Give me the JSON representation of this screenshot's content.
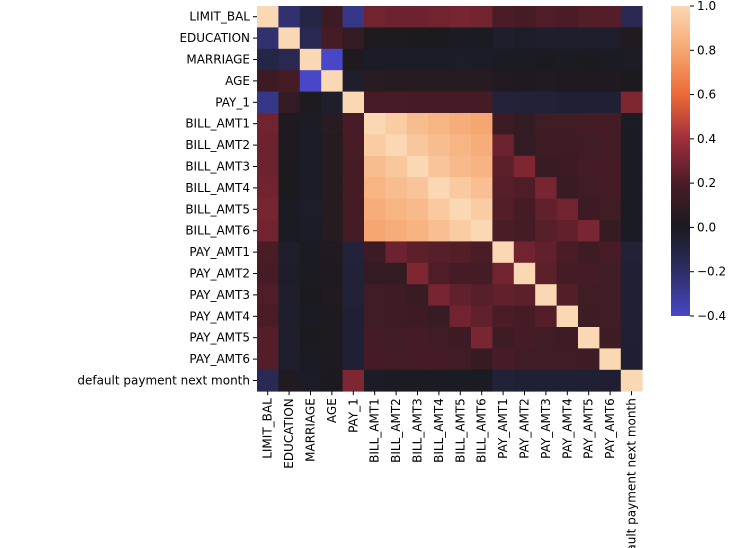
{
  "chart_data": {
    "type": "heatmap",
    "title": "",
    "xlabel": "",
    "ylabel": "",
    "labels": [
      "LIMIT_BAL",
      "EDUCATION",
      "MARRIAGE",
      "AGE",
      "PAY_1",
      "BILL_AMT1",
      "BILL_AMT2",
      "BILL_AMT3",
      "BILL_AMT4",
      "BILL_AMT5",
      "BILL_AMT6",
      "PAY_AMT1",
      "PAY_AMT2",
      "PAY_AMT3",
      "PAY_AMT4",
      "PAY_AMT5",
      "PAY_AMT6",
      "default payment next month"
    ],
    "values": [
      [
        1.0,
        -0.22,
        -0.11,
        0.14,
        -0.27,
        0.29,
        0.28,
        0.28,
        0.29,
        0.3,
        0.29,
        0.2,
        0.18,
        0.21,
        0.2,
        0.22,
        0.22,
        -0.15
      ],
      [
        -0.22,
        1.0,
        -0.14,
        0.18,
        0.11,
        0.02,
        0.02,
        0.01,
        0.0,
        -0.01,
        -0.01,
        -0.04,
        -0.03,
        -0.04,
        -0.04,
        -0.04,
        -0.04,
        0.03
      ],
      [
        -0.11,
        -0.14,
        1.0,
        -0.41,
        0.02,
        -0.02,
        -0.02,
        -0.02,
        -0.02,
        -0.03,
        -0.02,
        -0.01,
        -0.01,
        0.0,
        -0.01,
        -0.0,
        -0.01,
        -0.02
      ],
      [
        0.14,
        0.18,
        -0.41,
        1.0,
        -0.04,
        0.06,
        0.05,
        0.05,
        0.05,
        0.05,
        0.05,
        0.03,
        0.02,
        0.03,
        0.02,
        0.02,
        0.02,
        0.01
      ],
      [
        -0.27,
        0.11,
        0.02,
        -0.04,
        1.0,
        0.19,
        0.19,
        0.18,
        0.18,
        0.18,
        0.18,
        -0.08,
        -0.07,
        -0.07,
        -0.06,
        -0.06,
        -0.06,
        0.32
      ],
      [
        0.29,
        0.02,
        -0.02,
        0.06,
        0.19,
        1.0,
        0.95,
        0.89,
        0.86,
        0.83,
        0.8,
        0.14,
        0.1,
        0.16,
        0.16,
        0.17,
        0.18,
        -0.02
      ],
      [
        0.28,
        0.02,
        -0.02,
        0.05,
        0.19,
        0.95,
        1.0,
        0.93,
        0.89,
        0.86,
        0.83,
        0.28,
        0.1,
        0.15,
        0.15,
        0.16,
        0.17,
        -0.01
      ],
      [
        0.28,
        0.01,
        -0.02,
        0.05,
        0.18,
        0.89,
        0.93,
        1.0,
        0.92,
        0.88,
        0.85,
        0.24,
        0.32,
        0.13,
        0.14,
        0.18,
        0.18,
        -0.01
      ],
      [
        0.29,
        0.0,
        -0.02,
        0.05,
        0.18,
        0.86,
        0.89,
        0.92,
        1.0,
        0.94,
        0.9,
        0.23,
        0.21,
        0.3,
        0.13,
        0.16,
        0.18,
        -0.01
      ],
      [
        0.3,
        -0.01,
        -0.03,
        0.05,
        0.18,
        0.83,
        0.86,
        0.88,
        0.94,
        1.0,
        0.95,
        0.22,
        0.18,
        0.25,
        0.29,
        0.14,
        0.16,
        -0.01
      ],
      [
        0.29,
        -0.01,
        -0.02,
        0.05,
        0.18,
        0.8,
        0.83,
        0.85,
        0.9,
        0.95,
        1.0,
        0.2,
        0.17,
        0.23,
        0.25,
        0.31,
        0.12,
        -0.01
      ],
      [
        0.2,
        -0.04,
        -0.01,
        0.03,
        -0.08,
        0.14,
        0.28,
        0.24,
        0.23,
        0.22,
        0.2,
        1.0,
        0.29,
        0.25,
        0.2,
        0.15,
        0.19,
        -0.07
      ],
      [
        0.18,
        -0.03,
        -0.01,
        0.02,
        -0.07,
        0.1,
        0.1,
        0.32,
        0.21,
        0.18,
        0.17,
        0.29,
        1.0,
        0.24,
        0.18,
        0.18,
        0.16,
        -0.06
      ],
      [
        0.21,
        -0.04,
        0.0,
        0.03,
        -0.07,
        0.16,
        0.15,
        0.13,
        0.3,
        0.25,
        0.23,
        0.25,
        0.24,
        1.0,
        0.22,
        0.16,
        0.16,
        -0.06
      ],
      [
        0.2,
        -0.04,
        -0.01,
        0.02,
        -0.06,
        0.16,
        0.15,
        0.14,
        0.13,
        0.29,
        0.25,
        0.2,
        0.18,
        0.22,
        1.0,
        0.15,
        0.16,
        -0.06
      ],
      [
        0.22,
        -0.04,
        -0.0,
        0.02,
        -0.06,
        0.17,
        0.16,
        0.18,
        0.16,
        0.14,
        0.31,
        0.15,
        0.18,
        0.16,
        0.15,
        1.0,
        0.15,
        -0.06
      ],
      [
        0.22,
        -0.04,
        -0.01,
        0.02,
        -0.06,
        0.18,
        0.17,
        0.18,
        0.18,
        0.16,
        0.12,
        0.19,
        0.16,
        0.16,
        0.16,
        0.15,
        1.0,
        -0.05
      ],
      [
        -0.15,
        0.03,
        -0.02,
        0.01,
        0.32,
        -0.02,
        -0.01,
        -0.01,
        -0.01,
        -0.01,
        -0.01,
        -0.07,
        -0.06,
        -0.06,
        -0.06,
        -0.06,
        -0.05,
        1.0
      ]
    ],
    "vmin": -0.4,
    "vmax": 1.0,
    "colormap": "icefire",
    "colorbar_ticks": [
      1.0,
      0.8,
      0.6,
      0.4,
      0.2,
      0.0,
      -0.2,
      -0.4
    ],
    "colorbar_tick_labels": [
      "1.0",
      "0.8",
      "0.6",
      "0.4",
      "0.2",
      "0.0",
      "−0.2",
      "−0.4"
    ],
    "colorbar_placement": "right",
    "grid": false
  }
}
